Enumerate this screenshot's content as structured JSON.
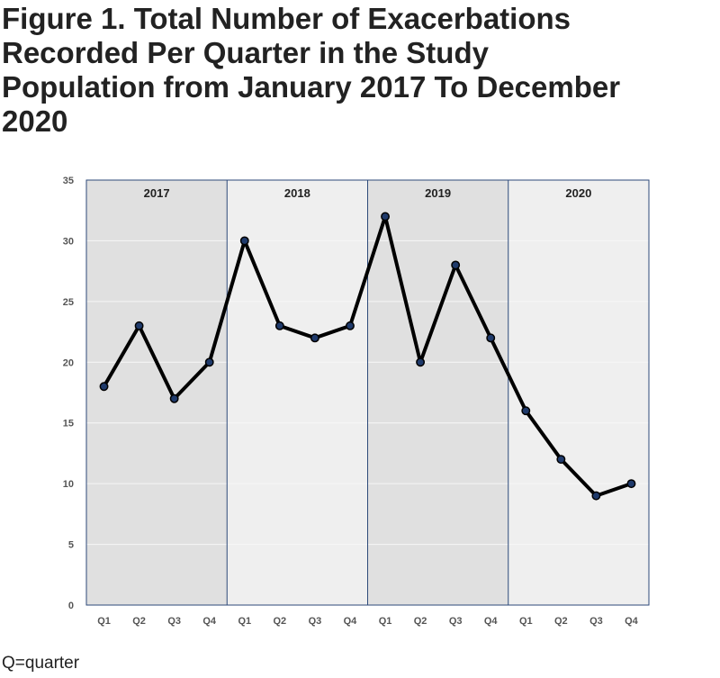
{
  "chart_data": {
    "type": "line",
    "title": "Figure 1. Total Number of Exacerbations Recorded Per Quarter in the Study Population from January 2017 To December 2020",
    "xlabel": "",
    "ylabel": "",
    "ylim": [
      0,
      35
    ],
    "yticks": [
      0,
      5,
      10,
      15,
      20,
      25,
      30,
      35
    ],
    "grid": true,
    "years": [
      "2017",
      "2018",
      "2019",
      "2020"
    ],
    "categories": [
      "Q1",
      "Q2",
      "Q3",
      "Q4",
      "Q1",
      "Q2",
      "Q3",
      "Q4",
      "Q1",
      "Q2",
      "Q3",
      "Q4",
      "Q1",
      "Q2",
      "Q3",
      "Q4"
    ],
    "series": [
      {
        "values": [
          18,
          23,
          17,
          20,
          30,
          23,
          22,
          23,
          32,
          20,
          28,
          22,
          16,
          12,
          9,
          10
        ]
      }
    ],
    "band_colors": [
      "#e0e0e0",
      "#efefef",
      "#e0e0e0",
      "#efefef"
    ],
    "line_color": "#000000",
    "marker_color": "#1f3a6b"
  },
  "footnote": "Q=quarter"
}
